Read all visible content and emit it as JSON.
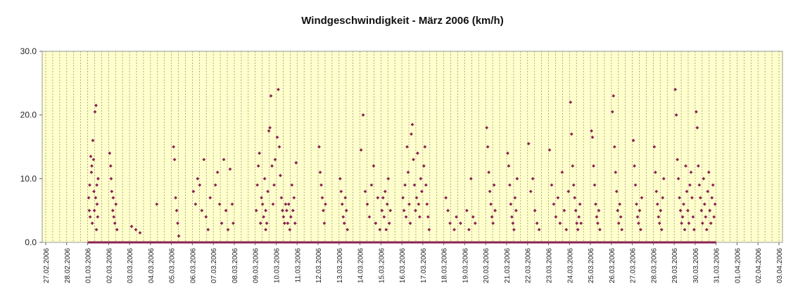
{
  "chart_data": {
    "type": "scatter",
    "title": "Windgeschwindigkeit - März 2006 (km/h)",
    "xlabel": "",
    "ylabel": "",
    "ylim": [
      0,
      30
    ],
    "yticks": [
      "0.0",
      "10.0",
      "20.0",
      "30.0"
    ],
    "grid": "vertical dashed at day boundaries",
    "legend": "none",
    "x_tick_labels": [
      "27.02.2006",
      "28.02.2006",
      "01.03.2006",
      "02.03.2006",
      "03.03.2006",
      "04.03.2006",
      "05.03.2006",
      "06.03.2006",
      "07.03.2006",
      "08.03.2006",
      "09.03.2006",
      "10.03.2006",
      "11.03.2006",
      "12.03.2006",
      "13.03.2006",
      "14.03.2006",
      "15.03.2006",
      "16.03.2006",
      "17.03.2006",
      "18.03.2006",
      "19.03.2006",
      "20.03.2006",
      "21.03.2006",
      "22.03.2006",
      "23.03.2006",
      "24.03.2006",
      "25.03.2006",
      "26.03.2006",
      "27.03.2006",
      "28.03.2006",
      "29.03.2006",
      "30.03.2006",
      "31.03.2006",
      "01.04.2006",
      "02.04.2006",
      "03.04.2006"
    ],
    "series": [
      {
        "color": "#8B2252",
        "x_unit": "days since first x tick",
        "points": [
          [
            2.05,
            7
          ],
          [
            2.1,
            9
          ],
          [
            2.15,
            13.5
          ],
          [
            2.2,
            12
          ],
          [
            2.25,
            16
          ],
          [
            2.3,
            8
          ],
          [
            2.35,
            20.5
          ],
          [
            2.4,
            21.5
          ],
          [
            2.45,
            6
          ],
          [
            2.5,
            10
          ],
          [
            2.12,
            4
          ],
          [
            2.22,
            3
          ],
          [
            2.32,
            5
          ],
          [
            2.42,
            2
          ],
          [
            2.18,
            11
          ],
          [
            2.28,
            13
          ],
          [
            2.38,
            7
          ],
          [
            2.48,
            4
          ],
          [
            2.08,
            5
          ],
          [
            2.44,
            9
          ],
          [
            3.05,
            14
          ],
          [
            3.1,
            12
          ],
          [
            3.15,
            8
          ],
          [
            3.2,
            5
          ],
          [
            3.25,
            4
          ],
          [
            3.3,
            3
          ],
          [
            3.35,
            6
          ],
          [
            3.12,
            10
          ],
          [
            3.22,
            7
          ],
          [
            3.4,
            2
          ],
          [
            4.1,
            2.5
          ],
          [
            4.3,
            2
          ],
          [
            4.5,
            1.5
          ],
          [
            5.3,
            6
          ],
          [
            6.1,
            15
          ],
          [
            6.15,
            13
          ],
          [
            6.2,
            7
          ],
          [
            6.25,
            5
          ],
          [
            6.3,
            3
          ],
          [
            6.35,
            1
          ],
          [
            7.05,
            8
          ],
          [
            7.15,
            6
          ],
          [
            7.25,
            10
          ],
          [
            7.35,
            9
          ],
          [
            7.45,
            5
          ],
          [
            7.55,
            13
          ],
          [
            7.65,
            4
          ],
          [
            7.75,
            2
          ],
          [
            7.85,
            7
          ],
          [
            8.1,
            9
          ],
          [
            8.2,
            11
          ],
          [
            8.3,
            6
          ],
          [
            8.4,
            3
          ],
          [
            8.5,
            13
          ],
          [
            8.6,
            5
          ],
          [
            8.7,
            2
          ],
          [
            8.8,
            11.5
          ],
          [
            8.9,
            6
          ],
          [
            8.95,
            3
          ],
          [
            10.05,
            5
          ],
          [
            10.1,
            9
          ],
          [
            10.15,
            12
          ],
          [
            10.2,
            14
          ],
          [
            10.25,
            3
          ],
          [
            10.3,
            7
          ],
          [
            10.35,
            6
          ],
          [
            10.4,
            4
          ],
          [
            10.45,
            10
          ],
          [
            10.5,
            5
          ],
          [
            10.55,
            3
          ],
          [
            10.6,
            8
          ],
          [
            10.65,
            17.5
          ],
          [
            10.7,
            18
          ],
          [
            10.75,
            23
          ],
          [
            10.8,
            12
          ],
          [
            10.85,
            6
          ],
          [
            10.9,
            9
          ],
          [
            10.95,
            13
          ],
          [
            10.5,
            2
          ],
          [
            11.05,
            16.5
          ],
          [
            11.1,
            24
          ],
          [
            11.15,
            15
          ],
          [
            11.2,
            10.5
          ],
          [
            11.25,
            7
          ],
          [
            11.3,
            5
          ],
          [
            11.35,
            4
          ],
          [
            11.4,
            3
          ],
          [
            11.45,
            6
          ],
          [
            11.5,
            5
          ],
          [
            11.55,
            3
          ],
          [
            11.6,
            6
          ],
          [
            11.65,
            2
          ],
          [
            11.7,
            4
          ],
          [
            11.75,
            9
          ],
          [
            11.8,
            5
          ],
          [
            11.85,
            7
          ],
          [
            11.9,
            3
          ],
          [
            11.95,
            12.5
          ],
          [
            13.05,
            15
          ],
          [
            13.1,
            11
          ],
          [
            13.15,
            9
          ],
          [
            13.2,
            7
          ],
          [
            13.25,
            5
          ],
          [
            13.3,
            3
          ],
          [
            13.35,
            6
          ],
          [
            14.05,
            10
          ],
          [
            14.1,
            8
          ],
          [
            14.15,
            6
          ],
          [
            14.2,
            4
          ],
          [
            14.25,
            3
          ],
          [
            14.3,
            7
          ],
          [
            14.35,
            5
          ],
          [
            14.4,
            2
          ],
          [
            15.05,
            14.5
          ],
          [
            15.15,
            20
          ],
          [
            15.25,
            8
          ],
          [
            15.35,
            6
          ],
          [
            15.45,
            4
          ],
          [
            15.55,
            9
          ],
          [
            15.65,
            12
          ],
          [
            15.75,
            3
          ],
          [
            15.85,
            7
          ],
          [
            15.95,
            2
          ],
          [
            16.05,
            5
          ],
          [
            16.1,
            7
          ],
          [
            16.15,
            4
          ],
          [
            16.2,
            8
          ],
          [
            16.25,
            2
          ],
          [
            16.3,
            6
          ],
          [
            16.35,
            10
          ],
          [
            16.4,
            3
          ],
          [
            16.45,
            5
          ],
          [
            17.05,
            7
          ],
          [
            17.1,
            5
          ],
          [
            17.15,
            9
          ],
          [
            17.2,
            4
          ],
          [
            17.25,
            15
          ],
          [
            17.3,
            11
          ],
          [
            17.35,
            6
          ],
          [
            17.4,
            3
          ],
          [
            17.45,
            17
          ],
          [
            17.5,
            18.5
          ],
          [
            17.55,
            13
          ],
          [
            17.6,
            9
          ],
          [
            17.65,
            5
          ],
          [
            17.7,
            7
          ],
          [
            17.75,
            14
          ],
          [
            17.8,
            6
          ],
          [
            17.85,
            4
          ],
          [
            17.9,
            10
          ],
          [
            17.95,
            8
          ],
          [
            18.05,
            12
          ],
          [
            18.1,
            15
          ],
          [
            18.15,
            9
          ],
          [
            18.2,
            6
          ],
          [
            18.25,
            4
          ],
          [
            18.3,
            2
          ],
          [
            19.1,
            7
          ],
          [
            19.2,
            5
          ],
          [
            19.3,
            3
          ],
          [
            19.5,
            2
          ],
          [
            19.6,
            4
          ],
          [
            19.8,
            3
          ],
          [
            20.1,
            5
          ],
          [
            20.2,
            2
          ],
          [
            20.3,
            10
          ],
          [
            20.4,
            4
          ],
          [
            20.5,
            3
          ],
          [
            21.05,
            18
          ],
          [
            21.1,
            15
          ],
          [
            21.15,
            11
          ],
          [
            21.2,
            8
          ],
          [
            21.25,
            6
          ],
          [
            21.3,
            4
          ],
          [
            21.35,
            3
          ],
          [
            21.4,
            9
          ],
          [
            21.45,
            5
          ],
          [
            22.05,
            14
          ],
          [
            22.1,
            12
          ],
          [
            22.15,
            9
          ],
          [
            22.2,
            6
          ],
          [
            22.25,
            4
          ],
          [
            22.3,
            3
          ],
          [
            22.35,
            2
          ],
          [
            22.4,
            7
          ],
          [
            22.45,
            5
          ],
          [
            22.5,
            10
          ],
          [
            23.05,
            15.5
          ],
          [
            23.15,
            8
          ],
          [
            23.25,
            10
          ],
          [
            23.35,
            5
          ],
          [
            23.45,
            3
          ],
          [
            23.55,
            2
          ],
          [
            24.05,
            14.5
          ],
          [
            24.15,
            9
          ],
          [
            24.25,
            6
          ],
          [
            24.35,
            4
          ],
          [
            24.45,
            7
          ],
          [
            24.55,
            3
          ],
          [
            24.65,
            11
          ],
          [
            24.75,
            5
          ],
          [
            24.85,
            2
          ],
          [
            24.95,
            8
          ],
          [
            25.05,
            22
          ],
          [
            25.1,
            17
          ],
          [
            25.15,
            12
          ],
          [
            25.2,
            9
          ],
          [
            25.25,
            7
          ],
          [
            25.3,
            5
          ],
          [
            25.35,
            3
          ],
          [
            25.4,
            2
          ],
          [
            25.45,
            4
          ],
          [
            25.5,
            6
          ],
          [
            25.55,
            3
          ],
          [
            26.05,
            17.5
          ],
          [
            26.1,
            16.5
          ],
          [
            26.15,
            12
          ],
          [
            26.2,
            9
          ],
          [
            26.25,
            6
          ],
          [
            26.3,
            4
          ],
          [
            26.35,
            3
          ],
          [
            26.4,
            5
          ],
          [
            26.45,
            2
          ],
          [
            27.05,
            20.5
          ],
          [
            27.1,
            23
          ],
          [
            27.15,
            15
          ],
          [
            27.2,
            11
          ],
          [
            27.25,
            8
          ],
          [
            27.3,
            5
          ],
          [
            27.35,
            3
          ],
          [
            27.4,
            6
          ],
          [
            27.45,
            4
          ],
          [
            27.5,
            2
          ],
          [
            28.05,
            16
          ],
          [
            28.1,
            12
          ],
          [
            28.15,
            9
          ],
          [
            28.2,
            6
          ],
          [
            28.25,
            4
          ],
          [
            28.3,
            3
          ],
          [
            28.35,
            5
          ],
          [
            28.4,
            2
          ],
          [
            28.45,
            7
          ],
          [
            29.05,
            15
          ],
          [
            29.1,
            11
          ],
          [
            29.15,
            8
          ],
          [
            29.2,
            6
          ],
          [
            29.25,
            4
          ],
          [
            29.3,
            3
          ],
          [
            29.35,
            5
          ],
          [
            29.4,
            2
          ],
          [
            29.45,
            7
          ],
          [
            29.5,
            10
          ],
          [
            30.05,
            24
          ],
          [
            30.1,
            20
          ],
          [
            30.15,
            13
          ],
          [
            30.2,
            10
          ],
          [
            30.25,
            7
          ],
          [
            30.3,
            5
          ],
          [
            30.35,
            3
          ],
          [
            30.4,
            4
          ],
          [
            30.45,
            6
          ],
          [
            30.5,
            2
          ],
          [
            30.55,
            12
          ],
          [
            30.6,
            8
          ],
          [
            30.65,
            5
          ],
          [
            30.7,
            3
          ],
          [
            30.75,
            9
          ],
          [
            30.8,
            11
          ],
          [
            30.85,
            7
          ],
          [
            30.9,
            4
          ],
          [
            30.95,
            2
          ],
          [
            31.05,
            20.5
          ],
          [
            31.1,
            18
          ],
          [
            31.15,
            12
          ],
          [
            31.2,
            9
          ],
          [
            31.25,
            7
          ],
          [
            31.3,
            5
          ],
          [
            31.35,
            3
          ],
          [
            31.4,
            10
          ],
          [
            31.45,
            6
          ],
          [
            31.5,
            4
          ],
          [
            31.55,
            2
          ],
          [
            31.6,
            8
          ],
          [
            31.65,
            11
          ],
          [
            31.7,
            5
          ],
          [
            31.75,
            3
          ],
          [
            31.8,
            7
          ],
          [
            31.85,
            9
          ],
          [
            31.9,
            4
          ],
          [
            31.95,
            6
          ]
        ]
      }
    ]
  }
}
